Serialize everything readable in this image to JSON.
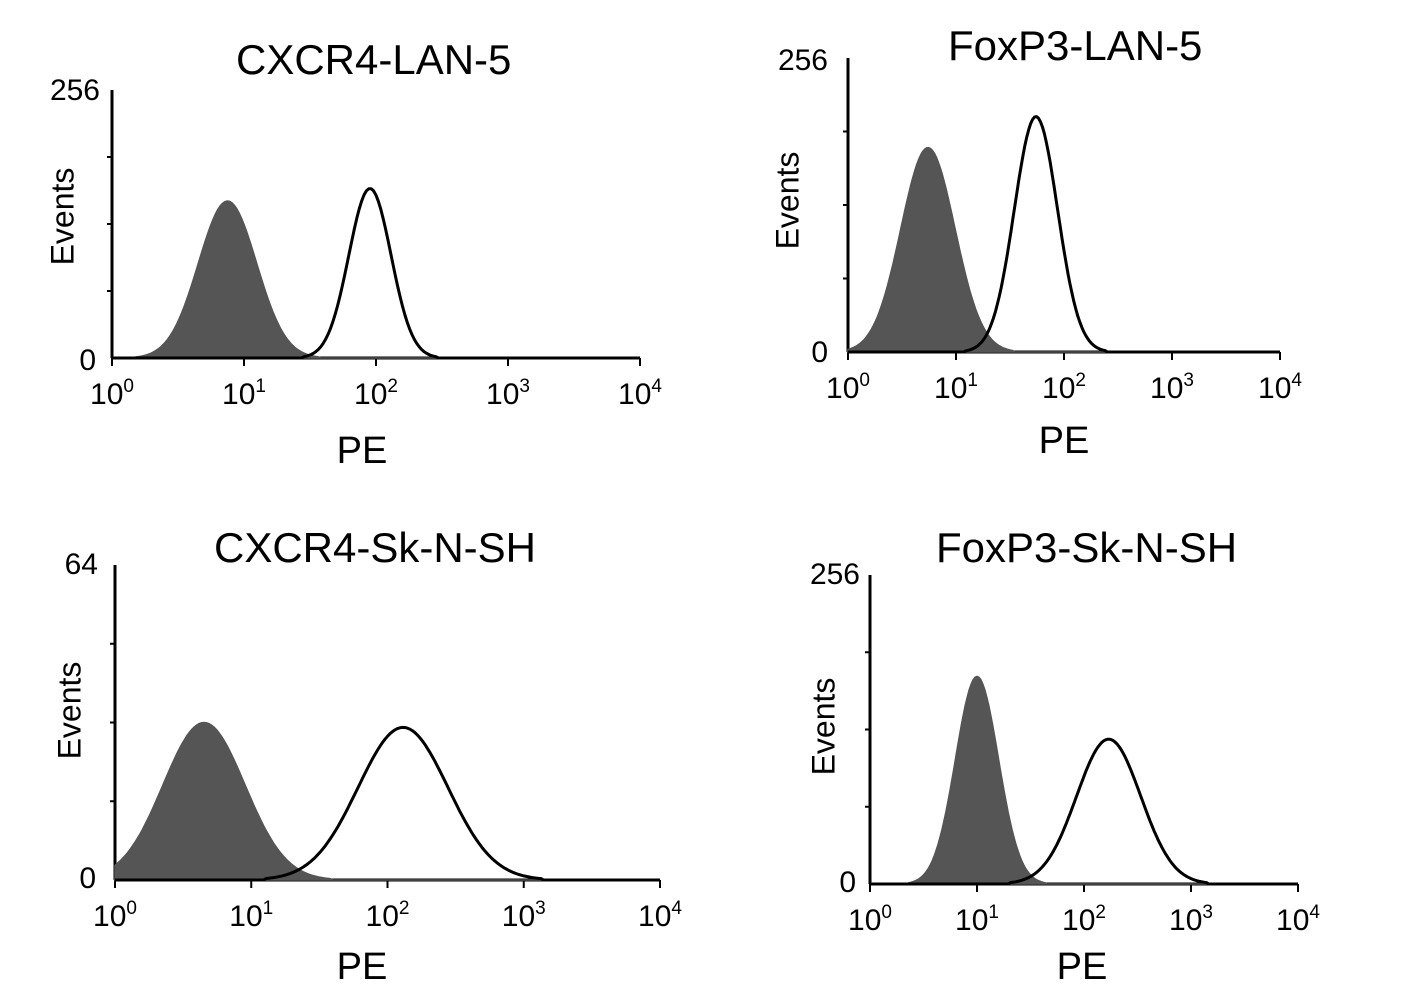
{
  "chart_data": [
    {
      "type": "area",
      "title": "CXCR4-LAN-5",
      "xlabel": "PE",
      "ylabel": "Events",
      "x_scale": "log",
      "xlim": [
        1,
        10000
      ],
      "ylim": [
        0,
        256
      ],
      "y_ticks": [
        "256",
        "0"
      ],
      "x_ticks": [
        {
          "base": "10",
          "exp": "0"
        },
        {
          "base": "10",
          "exp": "1"
        },
        {
          "base": "10",
          "exp": "2"
        },
        {
          "base": "10",
          "exp": "3"
        },
        {
          "base": "10",
          "exp": "4"
        }
      ],
      "series": [
        {
          "style": "filled",
          "color": "#555555",
          "peak_x": 7.5,
          "peak_y": 150,
          "width_log": 0.22
        },
        {
          "style": "outline",
          "color": "#000000",
          "peak_x": 90,
          "peak_y": 162,
          "width_log": 0.16
        }
      ]
    },
    {
      "type": "area",
      "title": "FoxP3-LAN-5",
      "xlabel": "PE",
      "ylabel": "Events",
      "x_scale": "log",
      "xlim": [
        1,
        10000
      ],
      "ylim": [
        0,
        256
      ],
      "y_ticks": [
        "256",
        "0"
      ],
      "x_ticks": [
        {
          "base": "10",
          "exp": "0"
        },
        {
          "base": "10",
          "exp": "1"
        },
        {
          "base": "10",
          "exp": "2"
        },
        {
          "base": "10",
          "exp": "3"
        },
        {
          "base": "10",
          "exp": "4"
        }
      ],
      "series": [
        {
          "style": "filled",
          "color": "#555555",
          "peak_x": 5.5,
          "peak_y": 178,
          "width_log": 0.25
        },
        {
          "style": "outline",
          "color": "#000000",
          "peak_x": 55,
          "peak_y": 205,
          "width_log": 0.2
        }
      ]
    },
    {
      "type": "area",
      "title": "CXCR4-Sk-N-SH",
      "xlabel": "PE",
      "ylabel": "Events",
      "x_scale": "log",
      "xlim": [
        1,
        10000
      ],
      "ylim": [
        0,
        64
      ],
      "y_ticks": [
        "64",
        "0"
      ],
      "x_ticks": [
        {
          "base": "10",
          "exp": "0"
        },
        {
          "base": "10",
          "exp": "1"
        },
        {
          "base": "10",
          "exp": "2"
        },
        {
          "base": "10",
          "exp": "3"
        },
        {
          "base": "10",
          "exp": "4"
        }
      ],
      "series": [
        {
          "style": "filled",
          "color": "#555555",
          "peak_x": 4.5,
          "peak_y": 32,
          "width_log": 0.3
        },
        {
          "style": "outline",
          "color": "#000000",
          "peak_x": 130,
          "peak_y": 31,
          "width_log": 0.33
        }
      ]
    },
    {
      "type": "area",
      "title": "FoxP3-Sk-N-SH",
      "xlabel": "PE",
      "ylabel": "Events",
      "x_scale": "log",
      "xlim": [
        1,
        10000
      ],
      "ylim": [
        0,
        256
      ],
      "y_ticks": [
        "256",
        "0"
      ],
      "x_ticks": [
        {
          "base": "10",
          "exp": "0"
        },
        {
          "base": "10",
          "exp": "1"
        },
        {
          "base": "10",
          "exp": "2"
        },
        {
          "base": "10",
          "exp": "3"
        },
        {
          "base": "10",
          "exp": "4"
        }
      ],
      "series": [
        {
          "style": "filled",
          "color": "#555555",
          "peak_x": 10,
          "peak_y": 172,
          "width_log": 0.2
        },
        {
          "style": "outline",
          "color": "#000000",
          "peak_x": 170,
          "peak_y": 120,
          "width_log": 0.3
        }
      ]
    }
  ]
}
